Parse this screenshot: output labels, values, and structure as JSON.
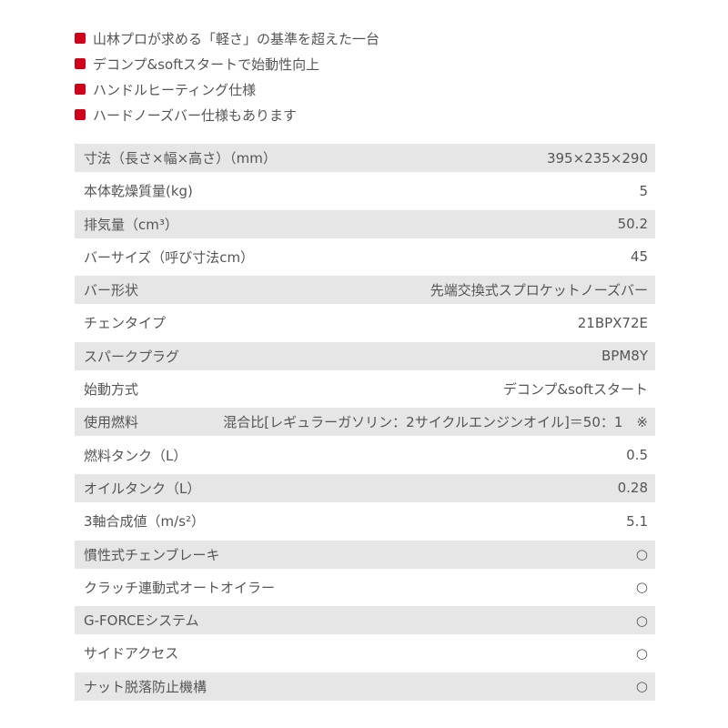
{
  "accent_color": "#d0021b",
  "features": [
    "山林プロが求める「軽さ」の基準を超えた一台",
    "デコンプ&softスタートで始動性向上",
    "ハンドルヒーティング仕様",
    "ハードノーズバー仕様もあります"
  ],
  "specs": [
    {
      "label": "寸法（長さ×幅×高さ）（mm）",
      "value": "395×235×290"
    },
    {
      "label": "本体乾燥質量(kg)",
      "value": "5"
    },
    {
      "label": "排気量（cm³）",
      "value": "50.2"
    },
    {
      "label": "バーサイズ（呼び寸法cm）",
      "value": "45"
    },
    {
      "label": "バー形状",
      "value": "先端交換式スプロケットノーズバー"
    },
    {
      "label": "チェンタイプ",
      "value": "21BPX72E"
    },
    {
      "label": "スパークプラグ",
      "value": "BPM8Y"
    },
    {
      "label": "始動方式",
      "value": "デコンプ&softスタート"
    },
    {
      "label": "使用燃料",
      "value": "混合比[レギュラーガソリン：2サイクルエンジンオイル]＝50：1　※"
    },
    {
      "label": "燃料タンク（L）",
      "value": "0.5"
    },
    {
      "label": "オイルタンク（L）",
      "value": "0.28"
    },
    {
      "label": "3軸合成値（m/s²）",
      "value": "5.1"
    },
    {
      "label": "慣性式チェンブレーキ",
      "value": "○"
    },
    {
      "label": "クラッチ連動式オートオイラー",
      "value": "○"
    },
    {
      "label": "G-FORCEシステム",
      "value": "○"
    },
    {
      "label": "サイドアクセス",
      "value": "○"
    },
    {
      "label": "ナット脱落防止機構",
      "value": "○"
    }
  ]
}
